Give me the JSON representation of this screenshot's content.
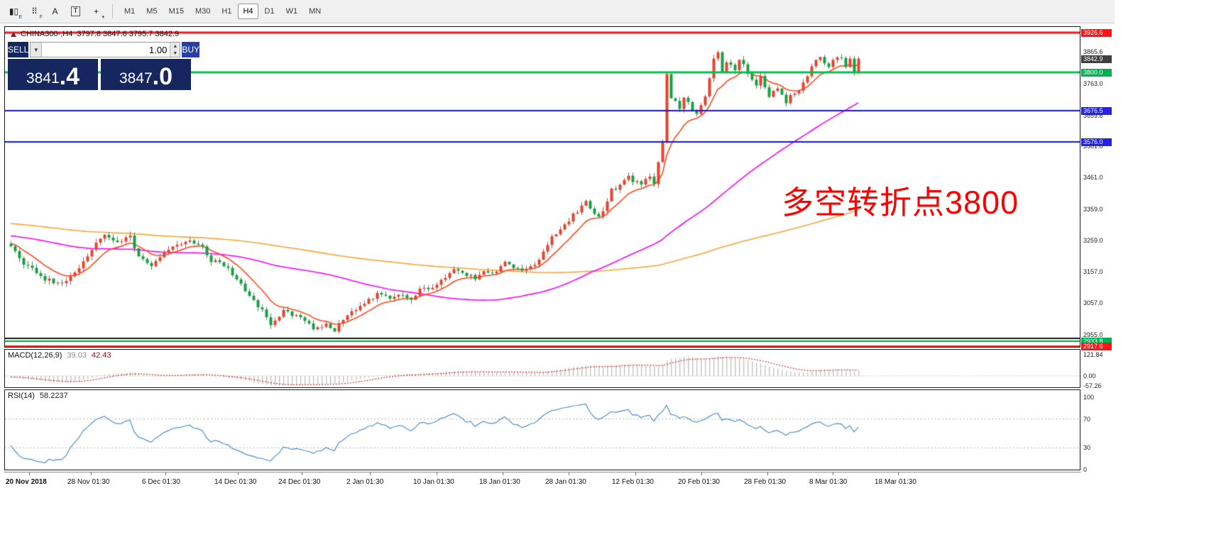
{
  "toolbar": {
    "tools": [
      {
        "name": "candlestick-chart-icon",
        "label": "E"
      },
      {
        "name": "indicator-grid-icon",
        "label": "F"
      },
      {
        "name": "text-label-icon",
        "label": ""
      },
      {
        "name": "text-box-icon",
        "label": ""
      },
      {
        "name": "crosshair-tool-icon",
        "label": "▾"
      }
    ],
    "timeframes": [
      {
        "label": "M1",
        "active": false
      },
      {
        "label": "M5",
        "active": false
      },
      {
        "label": "M15",
        "active": false
      },
      {
        "label": "M30",
        "active": false
      },
      {
        "label": "H1",
        "active": false
      },
      {
        "label": "H4",
        "active": true
      },
      {
        "label": "D1",
        "active": false
      },
      {
        "label": "W1",
        "active": false
      },
      {
        "label": "MN",
        "active": false
      }
    ]
  },
  "chart": {
    "title_symbol": "CHINA300-,H4",
    "title_ohlc": "3797.8 3847.6 3795.7 3842.9",
    "annotation": "多空转折点3800",
    "trade_panel": {
      "sell_label": "SELL",
      "buy_label": "BUY",
      "volume": "1.00",
      "sell_price_main": "3841",
      "sell_price_frac": ".4",
      "buy_price_main": "3847",
      "buy_price_frac": ".0",
      "icons": {
        "caret_down": "▼",
        "caret_up": "▲"
      }
    },
    "price_axis": [
      {
        "text": "3926.6",
        "price": 3926.6,
        "style": "red"
      },
      {
        "text": "3865.6",
        "price": 3865.6,
        "style": "plain"
      },
      {
        "text": "3842.9",
        "price": 3842.9,
        "style": "dark"
      },
      {
        "text": "3800.0",
        "price": 3800.0,
        "style": "green"
      },
      {
        "text": "3763.0",
        "price": 3763.0,
        "style": "plain"
      },
      {
        "text": "3676.5",
        "price": 3676.5,
        "style": "blue"
      },
      {
        "text": "3659.6",
        "price": 3659.6,
        "style": "plain"
      },
      {
        "text": "3576.0",
        "price": 3576.0,
        "style": "blue"
      },
      {
        "text": "3561.0",
        "price": 3561.0,
        "style": "plain"
      },
      {
        "text": "3461.0",
        "price": 3461.0,
        "style": "plain"
      },
      {
        "text": "3359.0",
        "price": 3359.0,
        "style": "plain"
      },
      {
        "text": "3259.0",
        "price": 3259.0,
        "style": "plain"
      },
      {
        "text": "3157.0",
        "price": 3157.0,
        "style": "plain"
      },
      {
        "text": "3057.0",
        "price": 3057.0,
        "style": "plain"
      },
      {
        "text": "2955.0",
        "price": 2955.0,
        "style": "plain"
      },
      {
        "text": "2933.8",
        "price": 2933.8,
        "style": "green"
      },
      {
        "text": "2917.6",
        "price": 2917.6,
        "style": "red"
      }
    ],
    "hlines": [
      {
        "price": 3926.6,
        "color": "#f81717",
        "width": 3
      },
      {
        "price": 3800.0,
        "color": "#00c24e",
        "width": 3
      },
      {
        "price": 3676.5,
        "color": "#1414e8",
        "width": 2
      },
      {
        "price": 3576.0,
        "color": "#1414e8",
        "width": 2
      },
      {
        "price": 2943.0,
        "color": "#151515",
        "width": 2
      },
      {
        "price": 2933.8,
        "color": "#00a33e",
        "width": 2
      },
      {
        "price": 2917.6,
        "color": "#f81717",
        "width": 2
      }
    ],
    "colors": {
      "up_candle": "#e8432d",
      "down_candle": "#17a043",
      "ma_fast": "#ff4a1d",
      "ma_mid": "#ff00ff",
      "ma_slow": "#ffa335",
      "macd_hist": "#c2c2c2",
      "macd_signal": "#d40000",
      "rsi_line": "#4d8fcc",
      "annotation": "#ff0000"
    }
  },
  "macd": {
    "label": "MACD(12,26,9)",
    "value1": "39.03",
    "value2": "42.43",
    "axis": [
      {
        "text": "121.84",
        "value": 121.84
      },
      {
        "text": "0.00",
        "value": 0
      },
      {
        "text": "-57.26",
        "value": -57.26
      }
    ]
  },
  "rsi": {
    "label": "RSI(14)",
    "value": "58.2237",
    "axis": [
      {
        "text": "100",
        "value": 100
      },
      {
        "text": "70",
        "value": 70
      },
      {
        "text": "30",
        "value": 30
      },
      {
        "text": "0",
        "value": 0
      }
    ],
    "levels": [
      70,
      30
    ]
  },
  "time_axis": [
    "20 Nov 2018",
    "28 Nov 01:30",
    "6 Dec 01:30",
    "14 Dec 01:30",
    "24 Dec 01:30",
    "2 Jan 01:30",
    "10 Jan 01:30",
    "18 Jan 01:30",
    "28 Jan 01:30",
    "12 Feb 01:30",
    "20 Feb 01:30",
    "28 Feb 01:30",
    "8 Mar 01:30",
    "18 Mar 01:30"
  ],
  "chart_data": {
    "type": "candlestick",
    "symbol": "CHINA300-",
    "timeframe": "H4",
    "bars": 200,
    "visible_price_range": [
      2917.6,
      3926.6
    ],
    "ohlc_current": {
      "open": 3797.8,
      "high": 3847.6,
      "low": 3795.7,
      "close": 3842.9
    },
    "bid": 3841.4,
    "ask": 3847.0,
    "price_anchors": [
      [
        0,
        3235
      ],
      [
        3,
        3185
      ],
      [
        8,
        3135
      ],
      [
        12,
        3118
      ],
      [
        15,
        3155
      ],
      [
        20,
        3250
      ],
      [
        22,
        3282
      ],
      [
        25,
        3255
      ],
      [
        28,
        3270
      ],
      [
        30,
        3205
      ],
      [
        33,
        3180
      ],
      [
        36,
        3225
      ],
      [
        40,
        3245
      ],
      [
        42,
        3262
      ],
      [
        45,
        3235
      ],
      [
        47,
        3195
      ],
      [
        50,
        3180
      ],
      [
        54,
        3120
      ],
      [
        56,
        3075
      ],
      [
        59,
        3035
      ],
      [
        61,
        2992
      ],
      [
        64,
        3030
      ],
      [
        66,
        3020
      ],
      [
        69,
        3000
      ],
      [
        71,
        2975
      ],
      [
        74,
        2988
      ],
      [
        76,
        2962
      ],
      [
        77,
        2992
      ],
      [
        80,
        3035
      ],
      [
        82,
        3045
      ],
      [
        85,
        3075
      ],
      [
        86,
        3092
      ],
      [
        89,
        3070
      ],
      [
        91,
        3085
      ],
      [
        94,
        3070
      ],
      [
        96,
        3100
      ],
      [
        99,
        3105
      ],
      [
        101,
        3130
      ],
      [
        104,
        3170
      ],
      [
        106,
        3155
      ],
      [
        109,
        3135
      ],
      [
        111,
        3160
      ],
      [
        114,
        3155
      ],
      [
        116,
        3185
      ],
      [
        120,
        3160
      ],
      [
        123,
        3180
      ],
      [
        125,
        3225
      ],
      [
        127,
        3270
      ],
      [
        130,
        3310
      ],
      [
        132,
        3340
      ],
      [
        135,
        3382
      ],
      [
        136,
        3360
      ],
      [
        138,
        3332
      ],
      [
        140,
        3380
      ],
      [
        141,
        3420
      ],
      [
        143,
        3432
      ],
      [
        145,
        3470
      ],
      [
        146,
        3450
      ],
      [
        148,
        3440
      ],
      [
        150,
        3462
      ],
      [
        151,
        3440
      ],
      [
        153,
        3570
      ],
      [
        154,
        3790
      ],
      [
        155,
        3718
      ],
      [
        157,
        3685
      ],
      [
        158,
        3722
      ],
      [
        160,
        3680
      ],
      [
        161,
        3660
      ],
      [
        162,
        3692
      ],
      [
        163,
        3722
      ],
      [
        165,
        3840
      ],
      [
        166,
        3862
      ],
      [
        167,
        3800
      ],
      [
        168,
        3830
      ],
      [
        170,
        3812
      ],
      [
        171,
        3842
      ],
      [
        172,
        3820
      ],
      [
        173,
        3800
      ],
      [
        175,
        3762
      ],
      [
        176,
        3790
      ],
      [
        177,
        3752
      ],
      [
        178,
        3722
      ],
      [
        180,
        3750
      ],
      [
        181,
        3726
      ],
      [
        182,
        3702
      ],
      [
        183,
        3722
      ],
      [
        185,
        3745
      ],
      [
        186,
        3762
      ],
      [
        187,
        3782
      ],
      [
        188,
        3820
      ],
      [
        190,
        3850
      ],
      [
        191,
        3830
      ],
      [
        192,
        3812
      ],
      [
        193,
        3840
      ],
      [
        195,
        3845
      ],
      [
        196,
        3820
      ],
      [
        197,
        3840
      ],
      [
        198,
        3802
      ],
      [
        199,
        3842.9
      ]
    ],
    "ma_periods": {
      "fast": 10,
      "mid": 60,
      "slow": 150
    },
    "hline_prices": [
      3926.6,
      3800.0,
      3676.5,
      3576.0,
      2943.0,
      2933.8,
      2917.6
    ],
    "indicators": [
      {
        "name": "MACD",
        "params": [
          12,
          26,
          9
        ],
        "values": [
          39.03,
          42.43
        ],
        "range": [
          -57.26,
          121.84
        ]
      },
      {
        "name": "RSI",
        "params": [
          14
        ],
        "value": 58.2237,
        "levels": [
          70,
          30
        ]
      }
    ]
  }
}
